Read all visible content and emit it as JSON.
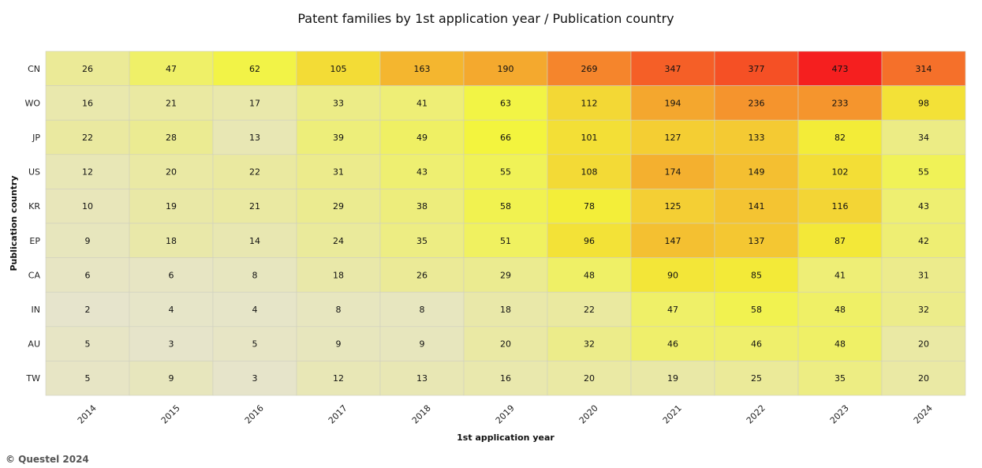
{
  "chart_data": {
    "type": "heatmap",
    "title": "Patent families by 1st application year / Publication country",
    "xlabel": "1st application year",
    "ylabel": "Publication country",
    "x": [
      "2014",
      "2015",
      "2016",
      "2017",
      "2018",
      "2019",
      "2020",
      "2021",
      "2022",
      "2023",
      "2024"
    ],
    "y": [
      "CN",
      "WO",
      "JP",
      "US",
      "KR",
      "EP",
      "CA",
      "IN",
      "AU",
      "TW"
    ],
    "values": [
      [
        26,
        47,
        62,
        105,
        163,
        190,
        269,
        347,
        377,
        473,
        314
      ],
      [
        16,
        21,
        17,
        33,
        41,
        63,
        112,
        194,
        236,
        233,
        98
      ],
      [
        22,
        28,
        13,
        39,
        49,
        66,
        101,
        127,
        133,
        82,
        34
      ],
      [
        12,
        20,
        22,
        31,
        43,
        55,
        108,
        174,
        149,
        102,
        55
      ],
      [
        10,
        19,
        21,
        29,
        38,
        58,
        78,
        125,
        141,
        116,
        43
      ],
      [
        9,
        18,
        14,
        24,
        35,
        51,
        96,
        147,
        137,
        87,
        42
      ],
      [
        6,
        6,
        8,
        18,
        26,
        29,
        48,
        90,
        85,
        41,
        31
      ],
      [
        2,
        4,
        4,
        8,
        8,
        18,
        22,
        47,
        58,
        48,
        32
      ],
      [
        5,
        3,
        5,
        9,
        9,
        20,
        32,
        46,
        46,
        48,
        20
      ],
      [
        5,
        9,
        3,
        12,
        13,
        16,
        20,
        19,
        25,
        35,
        20
      ]
    ],
    "colorscale": [
      "#e6e4cc",
      "#f3f53a",
      "#f4b32f",
      "#f57a2b",
      "#f51f1f"
    ],
    "legend": "none"
  },
  "credit": "© Questel 2024"
}
